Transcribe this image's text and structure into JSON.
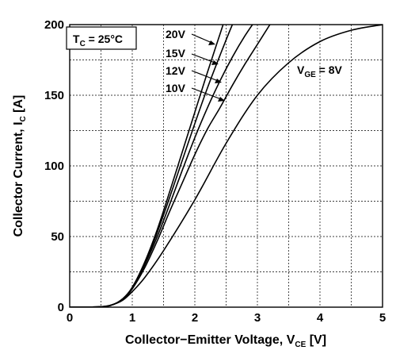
{
  "chart_data": {
    "type": "line",
    "xlabel_main": "Collector−Emitter Voltage, V",
    "xlabel_sub": "CE",
    "xlabel_unit": " [V]",
    "ylabel_main": "Collector Current, I",
    "ylabel_sub": "C",
    "ylabel_unit": " [A]",
    "xlim": [
      0,
      5
    ],
    "ylim": [
      0,
      200
    ],
    "x_ticks": [
      0,
      1,
      2,
      3,
      4,
      5
    ],
    "y_ticks": [
      0,
      50,
      100,
      150,
      200
    ],
    "grid_x_step": 0.5,
    "grid_y_step": 25,
    "grid": true,
    "condition_box": {
      "main": "T",
      "sub": "C",
      "rest": " = 25°C"
    },
    "series": [
      {
        "name": "20V",
        "x": [
          0,
          0.5,
          0.7,
          0.85,
          1.0,
          1.2,
          1.4,
          1.6,
          1.8,
          2.0,
          2.2,
          2.4,
          2.6
        ],
        "y": [
          0,
          0.3,
          2,
          6,
          14,
          32,
          55,
          82,
          110,
          138,
          166,
          193,
          220
        ]
      },
      {
        "name": "15V",
        "x": [
          0,
          0.5,
          0.7,
          0.85,
          1.0,
          1.2,
          1.4,
          1.6,
          1.8,
          2.0,
          2.2,
          2.4,
          2.6,
          2.75
        ],
        "y": [
          0,
          0.3,
          2,
          6,
          14,
          31,
          53,
          78,
          104,
          130,
          155,
          178,
          200,
          214
        ]
      },
      {
        "name": "12V",
        "x": [
          0,
          0.5,
          0.7,
          0.85,
          1.0,
          1.2,
          1.4,
          1.6,
          1.8,
          2.0,
          2.2,
          2.4,
          2.6,
          2.8,
          3.0
        ],
        "y": [
          0,
          0.3,
          2,
          6,
          13,
          30,
          50,
          73,
          97,
          120,
          141,
          160,
          177,
          192,
          205
        ]
      },
      {
        "name": "10V",
        "x": [
          0,
          0.5,
          0.7,
          0.85,
          1.0,
          1.2,
          1.4,
          1.6,
          1.8,
          2.0,
          2.2,
          2.4,
          2.6,
          2.8,
          3.0,
          3.2
        ],
        "y": [
          0,
          0.3,
          2,
          6,
          13,
          28,
          47,
          68,
          88,
          108,
          126,
          141,
          157,
          172,
          186,
          200
        ]
      },
      {
        "name": "8V",
        "label_main": "V",
        "label_sub": "GE",
        "label_rest": " = 8V",
        "x": [
          0,
          0.5,
          0.7,
          0.85,
          1.0,
          1.2,
          1.5,
          2.0,
          2.5,
          3.0,
          3.5,
          4.0,
          4.5,
          5.0
        ],
        "y": [
          0,
          0.3,
          2,
          5,
          11,
          21,
          40,
          76,
          116,
          150,
          173,
          188,
          196,
          200
        ]
      }
    ]
  }
}
